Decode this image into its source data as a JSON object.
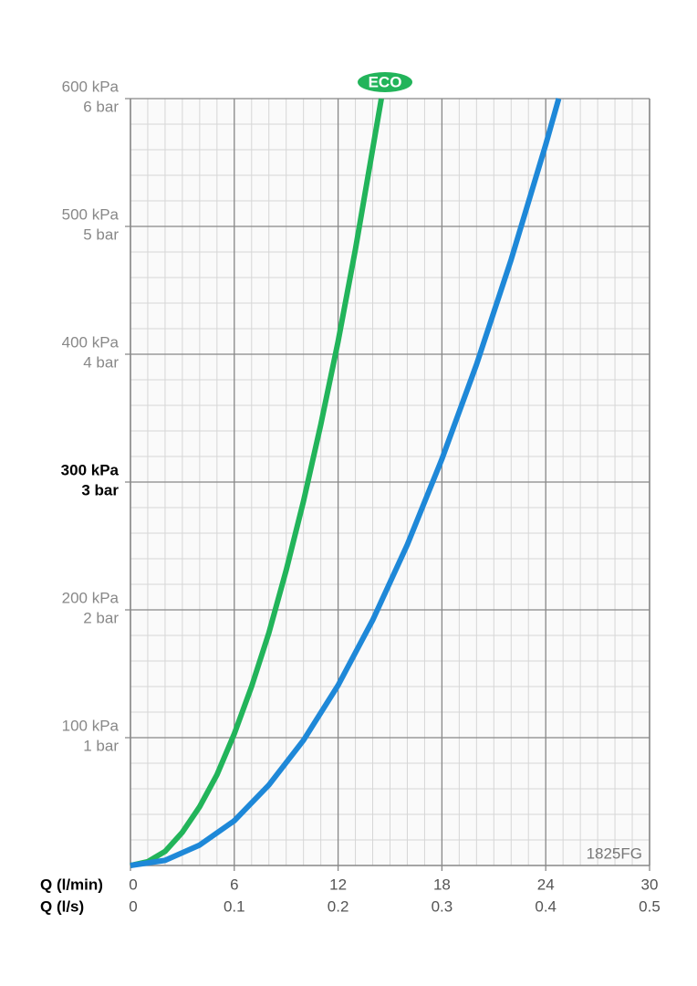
{
  "chart_data": {
    "type": "line",
    "xlabel": "Q (l/min)",
    "x2label": "Q (l/s)",
    "xlim": [
      0,
      30
    ],
    "xticks": [
      0,
      6,
      12,
      18,
      24,
      30
    ],
    "x2lim": [
      0,
      0.5
    ],
    "x2ticks": [
      0,
      0.1,
      0.2,
      0.3,
      0.4,
      0.5
    ],
    "ylim": [
      0,
      600
    ],
    "yticks": [
      {
        "value": 100,
        "label": "100 kPa"
      },
      {
        "value": 200,
        "label": "200 kPa"
      },
      {
        "value": 300,
        "label": "300 kPa"
      },
      {
        "value": 400,
        "label": "400 kPa"
      },
      {
        "value": 500,
        "label": "500 kPa"
      },
      {
        "value": 600,
        "label": "600 kPa"
      }
    ],
    "y2lim": [
      0,
      6
    ],
    "y2ticks": [
      {
        "value": 1,
        "label": "1 bar"
      },
      {
        "value": 2,
        "label": "2 bar"
      },
      {
        "value": 3,
        "label": "3 bar"
      },
      {
        "value": 4,
        "label": "4 bar"
      },
      {
        "value": 5,
        "label": "5 bar"
      },
      {
        "value": 6,
        "label": "6 bar"
      }
    ],
    "highlight_ytick": 300,
    "grid": true,
    "xminor": 1,
    "yminor": 20,
    "series": [
      {
        "name": "ECO",
        "color": "#22b45a",
        "x": [
          0,
          1,
          2,
          3,
          4,
          5,
          6,
          7,
          8,
          9,
          10,
          11,
          12,
          13,
          14.5
        ],
        "values": [
          0,
          3,
          11,
          26,
          46,
          71,
          103,
          140,
          182,
          231,
          285,
          345,
          410,
          482,
          600
        ]
      },
      {
        "color": "#1e88d8",
        "x": [
          0,
          2,
          4,
          6,
          8,
          10,
          12,
          14,
          16,
          18,
          20,
          22,
          24,
          24.75
        ],
        "values": [
          0,
          4,
          16,
          35,
          63,
          98,
          141,
          192,
          251,
          318,
          392,
          474,
          564,
          600
        ]
      }
    ],
    "code": "1825FG"
  }
}
